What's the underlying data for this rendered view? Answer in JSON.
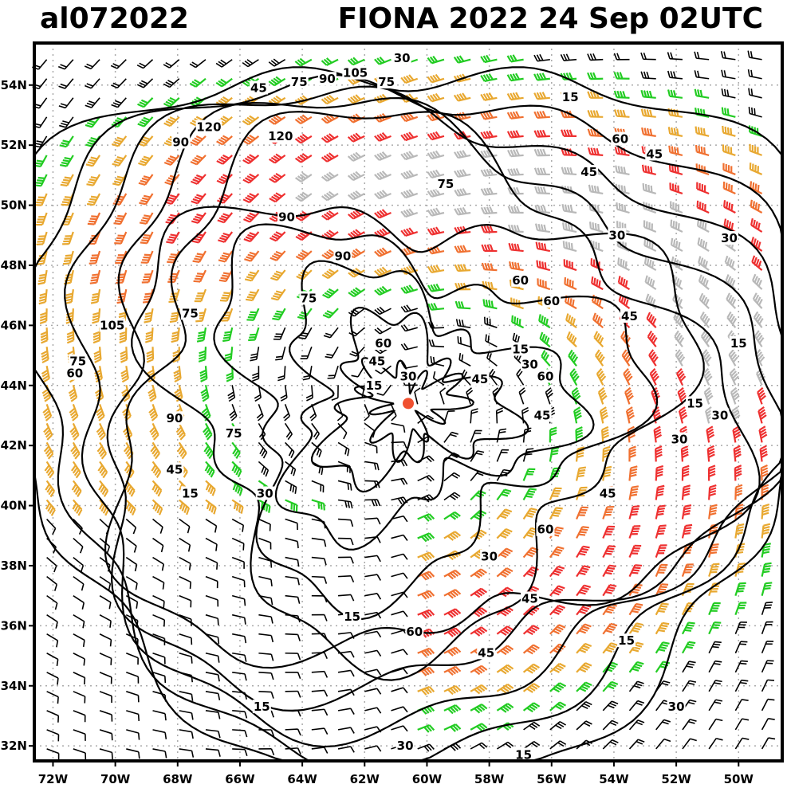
{
  "header": {
    "storm_id": "al072022",
    "storm_title": "FIONA 2022 24 Sep 02UTC"
  },
  "axes": {
    "lon_min": -72.6,
    "lon_max": -48.6,
    "lat_min": 31.5,
    "lat_max": 55.4,
    "lon_ticks": [
      {
        "v": -72,
        "label": "72W"
      },
      {
        "v": -70,
        "label": "70W"
      },
      {
        "v": -68,
        "label": "68W"
      },
      {
        "v": -66,
        "label": "66W"
      },
      {
        "v": -64,
        "label": "64W"
      },
      {
        "v": -62,
        "label": "62W"
      },
      {
        "v": -60,
        "label": "60W"
      },
      {
        "v": -58,
        "label": "58W"
      },
      {
        "v": -56,
        "label": "56W"
      },
      {
        "v": -54,
        "label": "54W"
      },
      {
        "v": -52,
        "label": "52W"
      },
      {
        "v": -50,
        "label": "50W"
      }
    ],
    "lat_ticks": [
      {
        "v": 32,
        "label": "32N"
      },
      {
        "v": 34,
        "label": "34N"
      },
      {
        "v": 36,
        "label": "36N"
      },
      {
        "v": 38,
        "label": "38N"
      },
      {
        "v": 40,
        "label": "40N"
      },
      {
        "v": 42,
        "label": "42N"
      },
      {
        "v": 44,
        "label": "44N"
      },
      {
        "v": 46,
        "label": "46N"
      },
      {
        "v": 48,
        "label": "48N"
      },
      {
        "v": 50,
        "label": "50N"
      },
      {
        "v": 52,
        "label": "52N"
      },
      {
        "v": 54,
        "label": "54N"
      }
    ],
    "grid": "dotted"
  },
  "storm_center": {
    "lon": -60.6,
    "lat": 43.4,
    "color": "#f05030"
  },
  "contour_labels": [
    {
      "text": "30",
      "lon": -60.8,
      "lat": 54.9
    },
    {
      "text": "105",
      "lon": -62.3,
      "lat": 54.4
    },
    {
      "text": "90",
      "lon": -63.2,
      "lat": 54.2
    },
    {
      "text": "75",
      "lon": -61.3,
      "lat": 54.1
    },
    {
      "text": "75",
      "lon": -64.1,
      "lat": 54.1
    },
    {
      "text": "45",
      "lon": -65.4,
      "lat": 53.9
    },
    {
      "text": "15",
      "lon": -55.4,
      "lat": 53.6
    },
    {
      "text": "120",
      "lon": -67.0,
      "lat": 52.6
    },
    {
      "text": "90",
      "lon": -67.9,
      "lat": 52.1
    },
    {
      "text": "120",
      "lon": -64.7,
      "lat": 52.3
    },
    {
      "text": "60",
      "lon": -53.8,
      "lat": 52.2
    },
    {
      "text": "45",
      "lon": -52.7,
      "lat": 51.7
    },
    {
      "text": "45",
      "lon": -54.8,
      "lat": 51.1
    },
    {
      "text": "75",
      "lon": -59.4,
      "lat": 50.7
    },
    {
      "text": "90",
      "lon": -64.5,
      "lat": 49.6
    },
    {
      "text": "30",
      "lon": -53.9,
      "lat": 49.0
    },
    {
      "text": "30",
      "lon": -50.3,
      "lat": 48.9
    },
    {
      "text": "90",
      "lon": -62.7,
      "lat": 48.3
    },
    {
      "text": "60",
      "lon": -57.0,
      "lat": 47.5
    },
    {
      "text": "75",
      "lon": -63.8,
      "lat": 46.9
    },
    {
      "text": "60",
      "lon": -56.0,
      "lat": 46.8
    },
    {
      "text": "75",
      "lon": -67.6,
      "lat": 46.4
    },
    {
      "text": "45",
      "lon": -53.5,
      "lat": 46.3
    },
    {
      "text": "105",
      "lon": -70.1,
      "lat": 46.0
    },
    {
      "text": "60",
      "lon": -61.4,
      "lat": 45.4
    },
    {
      "text": "15",
      "lon": -57.0,
      "lat": 45.2
    },
    {
      "text": "15",
      "lon": -50.0,
      "lat": 45.4
    },
    {
      "text": "45",
      "lon": -61.6,
      "lat": 44.8
    },
    {
      "text": "75",
      "lon": -71.2,
      "lat": 44.8
    },
    {
      "text": "30",
      "lon": -56.7,
      "lat": 44.7
    },
    {
      "text": "60",
      "lon": -71.3,
      "lat": 44.4
    },
    {
      "text": "60",
      "lon": -56.2,
      "lat": 44.3
    },
    {
      "text": "30",
      "lon": -60.6,
      "lat": 44.3
    },
    {
      "text": "45",
      "lon": -58.3,
      "lat": 44.2
    },
    {
      "text": "15",
      "lon": -61.7,
      "lat": 44.0
    },
    {
      "text": "45",
      "lon": -56.3,
      "lat": 43.0
    },
    {
      "text": "15",
      "lon": -51.4,
      "lat": 43.4
    },
    {
      "text": "30",
      "lon": -50.6,
      "lat": 43.0
    },
    {
      "text": "90",
      "lon": -68.1,
      "lat": 42.9
    },
    {
      "text": "75",
      "lon": -66.2,
      "lat": 42.4
    },
    {
      "text": "30",
      "lon": -51.9,
      "lat": 42.2
    },
    {
      "text": "45",
      "lon": -68.1,
      "lat": 41.2
    },
    {
      "text": "15",
      "lon": -67.6,
      "lat": 40.4
    },
    {
      "text": "30",
      "lon": -65.2,
      "lat": 40.4
    },
    {
      "text": "45",
      "lon": -54.2,
      "lat": 40.4
    },
    {
      "text": "60",
      "lon": -56.2,
      "lat": 39.2
    },
    {
      "text": "30",
      "lon": -58.0,
      "lat": 38.3
    },
    {
      "text": "45",
      "lon": -56.7,
      "lat": 36.9
    },
    {
      "text": "15",
      "lon": -62.4,
      "lat": 36.3
    },
    {
      "text": "60",
      "lon": -60.4,
      "lat": 35.8
    },
    {
      "text": "45",
      "lon": -58.1,
      "lat": 35.1
    },
    {
      "text": "15",
      "lon": -53.6,
      "lat": 35.5
    },
    {
      "text": "15",
      "lon": -65.3,
      "lat": 33.3
    },
    {
      "text": "30",
      "lon": -52.0,
      "lat": 33.3
    },
    {
      "text": "30",
      "lon": -60.7,
      "lat": 32.0
    },
    {
      "text": "15",
      "lon": -56.9,
      "lat": 31.7
    }
  ],
  "wind_colors": {
    "calm": "#000000",
    "tropical_storm": "#22cc22",
    "strong": "#e8a830",
    "hurricane": "#f07030",
    "major": "#ee3030",
    "extreme": "#b8b8b8"
  }
}
